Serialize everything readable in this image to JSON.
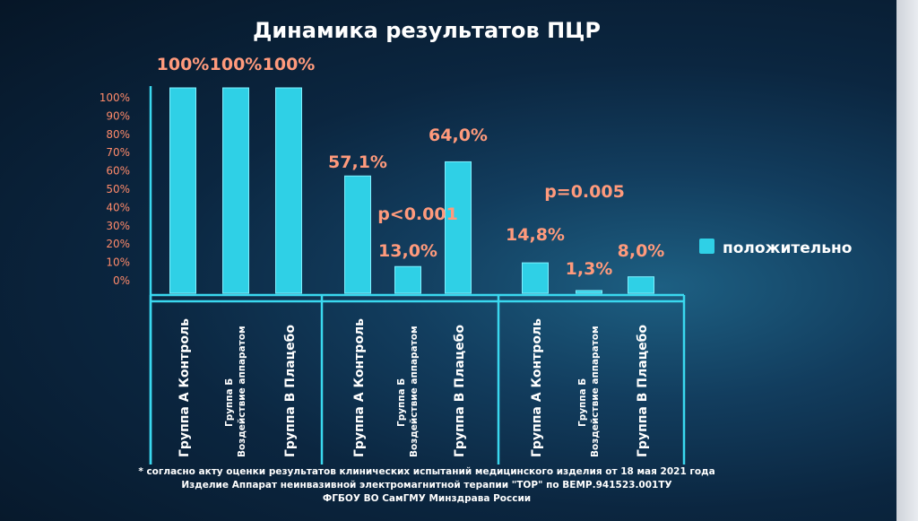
{
  "chart_data": {
    "type": "bar",
    "title": "Динамика результатов ПЦР",
    "y_ticks": [
      "100%",
      "90%",
      "80%",
      "70%",
      "60%",
      "50%",
      "40%",
      "30%",
      "20%",
      "10%",
      "0%"
    ],
    "ylim": [
      0,
      100
    ],
    "grid": false,
    "legend_position": "right",
    "series": [
      {
        "name": "положительно",
        "color": "#2fd0e6",
        "categories": [
          [
            "Группа А Контроль"
          ],
          [
            "Группа Б",
            "Воздействие аппаратом"
          ],
          [
            "Группа В Плацебо"
          ],
          [
            "Группа А Контроль"
          ],
          [
            "Группа Б",
            "Воздействие аппаратом"
          ],
          [
            "Группа В Плацебо"
          ],
          [
            "Группа А Контроль"
          ],
          [
            "Группа Б",
            "Воздействие аппаратом"
          ],
          [
            "Группа В Плацебо"
          ]
        ],
        "values": [
          100,
          100,
          100,
          57.1,
          13.0,
          64.0,
          14.8,
          1.3,
          8.0
        ],
        "labels": [
          "100%",
          "100%",
          "100%",
          "57,1%",
          "13,0%",
          "64,0%",
          "14,8%",
          "1,3%",
          "8,0%"
        ]
      }
    ],
    "annotations": [
      "p<0.001",
      "p=0.005"
    ]
  },
  "footnote": [
    "* согласно акту оценки результатов клинических испытаний медицинского изделия от 18 мая 2021 года",
    "Изделие Аппарат неинвазивной электромагнитной терапии \"ТОР\" по ВЕМР.941523.001ТУ",
    "ФГБОУ ВО СамГМУ Минздрава России"
  ]
}
